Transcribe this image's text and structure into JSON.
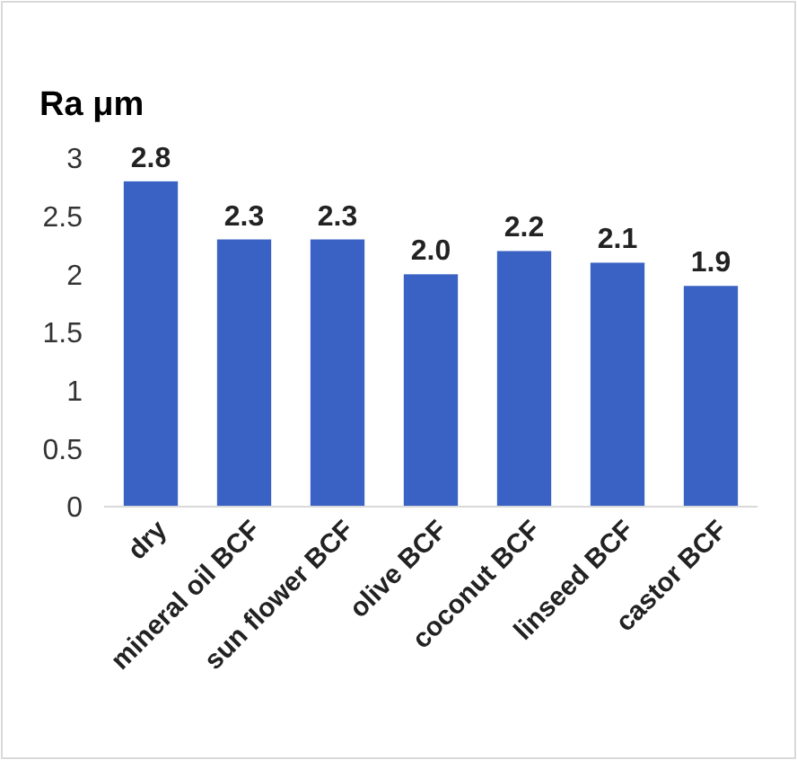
{
  "chart_data": {
    "type": "bar",
    "title": "Ra μm",
    "categories": [
      "dry",
      "mineral oil BCF",
      "sun flower BCF",
      "olive BCF",
      "coconut BCF",
      "linseed BCF",
      "castor BCF"
    ],
    "values": [
      2.8,
      2.3,
      2.3,
      2.0,
      2.2,
      2.1,
      1.9
    ],
    "value_labels": [
      "2.8",
      "2.3",
      "2.3",
      "2.0",
      "2.2",
      "2.1",
      "1.9"
    ],
    "color": "#3a62c4",
    "ylim": [
      0,
      3
    ],
    "yticks": [
      0,
      {
        "value": 0.5,
        "label": "0.5"
      },
      1,
      {
        "value": 1.5,
        "label": "1.5"
      },
      2,
      {
        "value": 2.5,
        "label": "2.5"
      },
      3
    ],
    "grid": false
  }
}
